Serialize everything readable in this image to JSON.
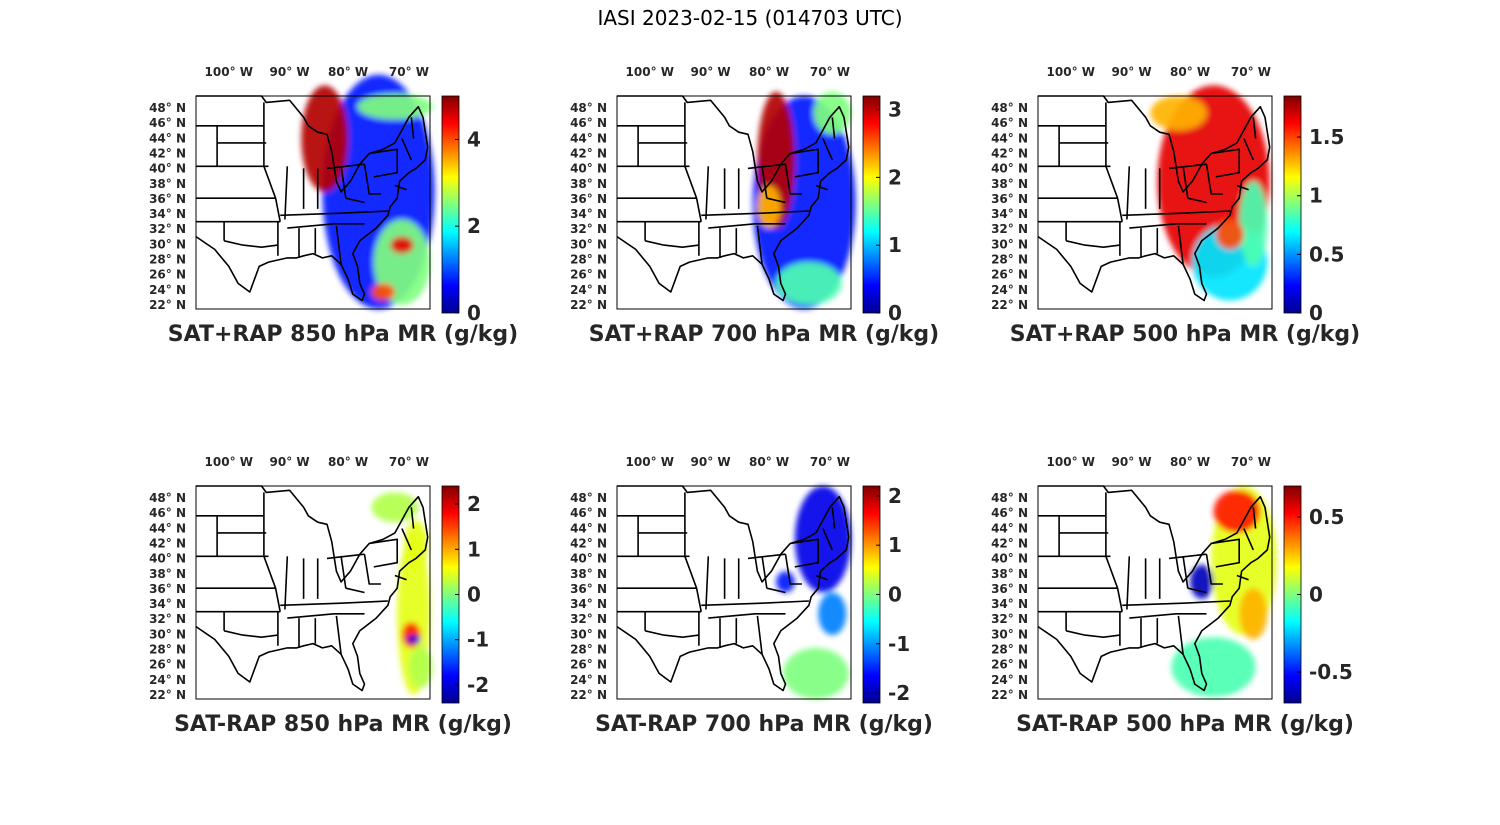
{
  "figure": {
    "title": "IASI 2023-02-15 (014703 UTC)"
  },
  "colors": {
    "jet_low": "#00008f",
    "jet_mid": "#7fff7f",
    "jet_high": "#800000",
    "map_lines": "#000000",
    "text": "#262626"
  },
  "chart_data": [
    {
      "type": "heatmap",
      "title": "SAT+RAP 850 hPa MR (g/kg)",
      "xlabel": "",
      "ylabel": "",
      "lon_ticks": [
        "100° W",
        "90° W",
        "80° W",
        "70° W"
      ],
      "lat_ticks": [
        "48° N",
        "46° N",
        "44° N",
        "42° N",
        "40° N",
        "38° N",
        "36° N",
        "34° N",
        "32° N",
        "30° N",
        "28° N",
        "26° N",
        "24° N",
        "22° N"
      ],
      "colorbar": {
        "range": [
          0,
          5
        ],
        "ticks": [
          0,
          2,
          4
        ],
        "tick_labels": [
          "0",
          "2",
          "4"
        ]
      },
      "field": "SAT+RAP",
      "level_hpa": 850,
      "units": "g/kg"
    },
    {
      "type": "heatmap",
      "title": "SAT+RAP 700 hPa MR (g/kg)",
      "xlabel": "",
      "ylabel": "",
      "lon_ticks": [
        "100° W",
        "90° W",
        "80° W",
        "70° W"
      ],
      "lat_ticks": [
        "48° N",
        "46° N",
        "44° N",
        "42° N",
        "40° N",
        "38° N",
        "36° N",
        "34° N",
        "32° N",
        "30° N",
        "28° N",
        "26° N",
        "24° N",
        "22° N"
      ],
      "colorbar": {
        "range": [
          0,
          3.2
        ],
        "ticks": [
          0,
          1,
          2,
          3
        ],
        "tick_labels": [
          "0",
          "1",
          "2",
          "3"
        ]
      },
      "field": "SAT+RAP",
      "level_hpa": 700,
      "units": "g/kg"
    },
    {
      "type": "heatmap",
      "title": "SAT+RAP 500 hPa MR (g/kg)",
      "xlabel": "",
      "ylabel": "",
      "lon_ticks": [
        "100° W",
        "90° W",
        "80° W",
        "70° W"
      ],
      "lat_ticks": [
        "48° N",
        "46° N",
        "44° N",
        "42° N",
        "40° N",
        "38° N",
        "36° N",
        "34° N",
        "32° N",
        "30° N",
        "28° N",
        "26° N",
        "24° N",
        "22° N"
      ],
      "colorbar": {
        "range": [
          0,
          1.85
        ],
        "ticks": [
          0,
          0.5,
          1,
          1.5
        ],
        "tick_labels": [
          "0",
          "0.5",
          "1",
          "1.5"
        ]
      },
      "field": "SAT+RAP",
      "level_hpa": 500,
      "units": "g/kg"
    },
    {
      "type": "heatmap",
      "title": "SAT-RAP 850 hPa MR (g/kg)",
      "xlabel": "",
      "ylabel": "",
      "lon_ticks": [
        "100° W",
        "90° W",
        "80° W",
        "70° W"
      ],
      "lat_ticks": [
        "48° N",
        "46° N",
        "44° N",
        "42° N",
        "40° N",
        "38° N",
        "36° N",
        "34° N",
        "32° N",
        "30° N",
        "28° N",
        "26° N",
        "24° N",
        "22° N"
      ],
      "colorbar": {
        "range": [
          -2.4,
          2.4
        ],
        "ticks": [
          -2,
          -1,
          0,
          1,
          2
        ],
        "tick_labels": [
          "-2",
          "-1",
          "0",
          "1",
          "2"
        ]
      },
      "field": "SAT-RAP",
      "level_hpa": 850,
      "units": "g/kg"
    },
    {
      "type": "heatmap",
      "title": "SAT-RAP 700 hPa MR (g/kg)",
      "xlabel": "",
      "ylabel": "",
      "lon_ticks": [
        "100° W",
        "90° W",
        "80° W",
        "70° W"
      ],
      "lat_ticks": [
        "48° N",
        "46° N",
        "44° N",
        "42° N",
        "40° N",
        "38° N",
        "36° N",
        "34° N",
        "32° N",
        "30° N",
        "28° N",
        "26° N",
        "24° N",
        "22° N"
      ],
      "colorbar": {
        "range": [
          -2.2,
          2.2
        ],
        "ticks": [
          -2,
          -1,
          0,
          1,
          2
        ],
        "tick_labels": [
          "-2",
          "-1",
          "0",
          "1",
          "2"
        ]
      },
      "field": "SAT-RAP",
      "level_hpa": 700,
      "units": "g/kg"
    },
    {
      "type": "heatmap",
      "title": "SAT-RAP 500 hPa MR (g/kg)",
      "xlabel": "",
      "ylabel": "",
      "lon_ticks": [
        "100° W",
        "90° W",
        "80° W",
        "70° W"
      ],
      "lat_ticks": [
        "48° N",
        "46° N",
        "44° N",
        "42° N",
        "40° N",
        "38° N",
        "36° N",
        "34° N",
        "32° N",
        "30° N",
        "28° N",
        "26° N",
        "24° N",
        "22° N"
      ],
      "colorbar": {
        "range": [
          -0.7,
          0.7
        ],
        "ticks": [
          -0.5,
          0,
          0.5
        ],
        "tick_labels": [
          "-0.5",
          "0",
          "0.5"
        ]
      },
      "field": "SAT-RAP",
      "level_hpa": 500,
      "units": "g/kg"
    }
  ]
}
